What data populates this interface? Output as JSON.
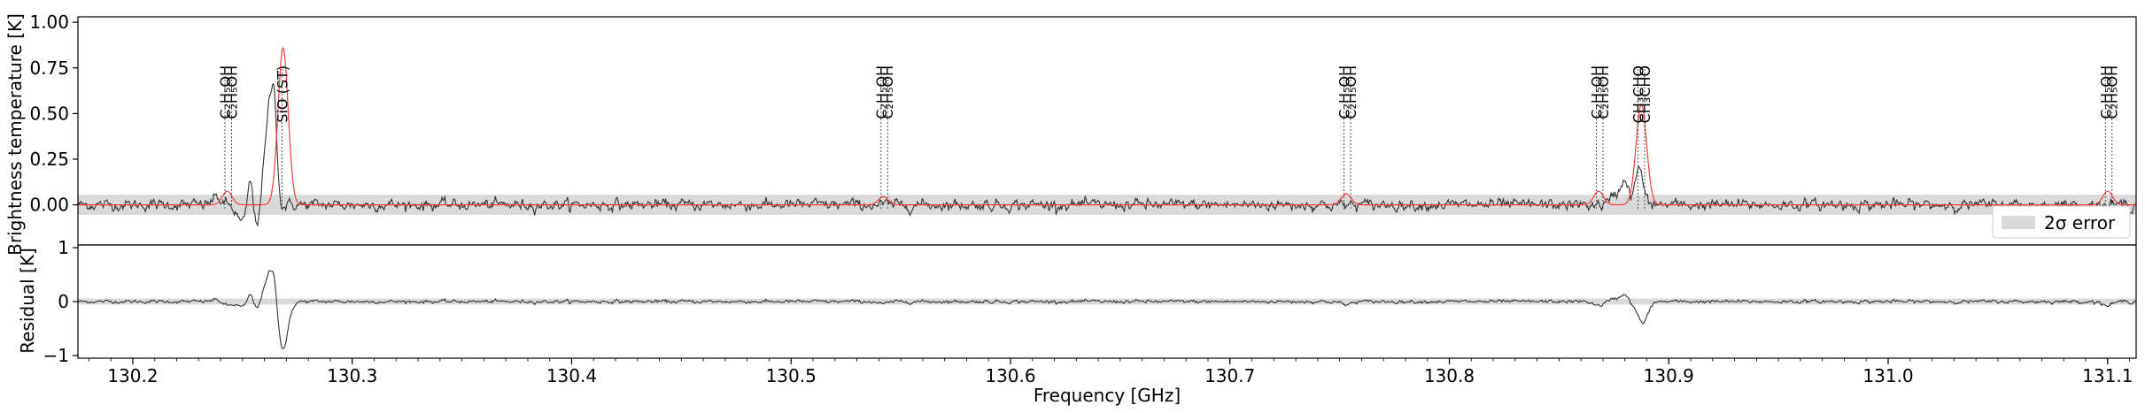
{
  "chart_data": {
    "type": "line",
    "x_unit": "GHz",
    "xlim": [
      130.175,
      131.113
    ],
    "x_ticks": [
      "130.2",
      "130.3",
      "130.4",
      "130.5",
      "130.6",
      "130.7",
      "130.8",
      "130.9",
      "131.0",
      "131.1"
    ],
    "xlabel": "Frequency [GHz]",
    "panels": [
      {
        "name": "spectrum",
        "ylabel": "Brightness temperature [K]",
        "ylim": [
          -0.22,
          1.03
        ],
        "y_ticks": [
          "−0.25",
          "0.00",
          "0.25",
          "0.50",
          "0.75",
          "1.00"
        ],
        "error_band": [
          -0.055,
          0.055
        ],
        "legend": {
          "position": "lower-right",
          "label": "2σ error"
        },
        "series": [
          {
            "role": "observed",
            "color": "#333333"
          },
          {
            "role": "model",
            "color": "#ff3b3b"
          }
        ]
      },
      {
        "name": "residual",
        "ylabel": "Residual [K]",
        "ylim": [
          -1.05,
          1.05
        ],
        "y_ticks": [
          "−1",
          "0",
          "1"
        ],
        "error_band": [
          -0.055,
          0.055
        ],
        "series": [
          {
            "role": "residual",
            "color": "#333333"
          }
        ]
      }
    ],
    "spectral_lines": [
      {
        "freq": 130.242,
        "label": "C₂H₅OH"
      },
      {
        "freq": 130.245,
        "label": "C₂H₅OH"
      },
      {
        "freq": 130.268,
        "label": "SiO (ST)"
      },
      {
        "freq": 130.541,
        "label": "C₂H₅OH"
      },
      {
        "freq": 130.544,
        "label": "C₂H₅OH"
      },
      {
        "freq": 130.752,
        "label": "C₂H₅OH"
      },
      {
        "freq": 130.755,
        "label": "C₂H₅OH"
      },
      {
        "freq": 130.867,
        "label": "C₂H₅OH"
      },
      {
        "freq": 130.87,
        "label": "C₂H₅OH"
      },
      {
        "freq": 130.886,
        "label": "CH₃CHO"
      },
      {
        "freq": 130.889,
        "label": "CH₃CHO"
      },
      {
        "freq": 131.099,
        "label": "C₂H₅OH"
      },
      {
        "freq": 131.102,
        "label": "C₂H₅OH"
      }
    ],
    "model_peaks": [
      {
        "freq": 130.243,
        "amp": 0.075,
        "width": 0.0022
      },
      {
        "freq": 130.2685,
        "amp": 0.86,
        "width": 0.0023
      },
      {
        "freq": 130.542,
        "amp": 0.045,
        "width": 0.0022
      },
      {
        "freq": 130.753,
        "amp": 0.06,
        "width": 0.0022
      },
      {
        "freq": 130.868,
        "amp": 0.075,
        "width": 0.0022
      },
      {
        "freq": 130.8875,
        "amp": 0.55,
        "width": 0.0024
      },
      {
        "freq": 131.1,
        "amp": 0.075,
        "width": 0.0022
      }
    ],
    "observed_features": [
      {
        "freq": 130.238,
        "amp": 0.04,
        "width": 0.002
      },
      {
        "freq": 130.25,
        "amp": -0.1,
        "width": 0.0025
      },
      {
        "freq": 130.2535,
        "amp": 0.18,
        "width": 0.0012
      },
      {
        "freq": 130.2565,
        "amp": -0.12,
        "width": 0.0015
      },
      {
        "freq": 130.2595,
        "amp": 0.14,
        "width": 0.0014
      },
      {
        "freq": 130.2625,
        "amp": 0.52,
        "width": 0.0016
      },
      {
        "freq": 130.2648,
        "amp": 0.4,
        "width": 0.0012
      },
      {
        "freq": 130.2675,
        "amp": -0.02,
        "width": 0.0015
      },
      {
        "freq": 130.876,
        "amp": 0.06,
        "width": 0.002
      },
      {
        "freq": 130.88,
        "amp": 0.14,
        "width": 0.0015
      },
      {
        "freq": 130.8865,
        "amp": 0.2,
        "width": 0.0018
      }
    ],
    "noise_rms": 0.022
  }
}
